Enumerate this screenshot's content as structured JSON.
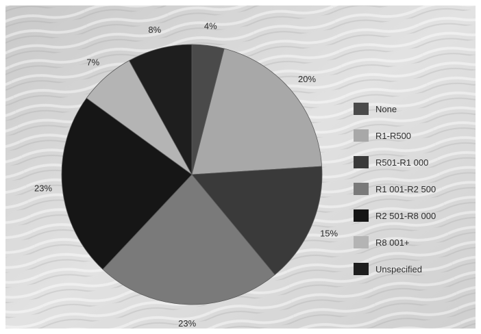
{
  "chart_data": {
    "type": "pie",
    "categories": [
      "None",
      "R1-R500",
      "R501-R1 000",
      "R1 001-R2 500",
      "R2 501-R8 000",
      "R8 001+",
      "Unspecified"
    ],
    "values": [
      4,
      20,
      15,
      23,
      23,
      7,
      8
    ],
    "value_labels": [
      "4%",
      "20%",
      "15%",
      "23%",
      "23%",
      "7%",
      "8%"
    ],
    "legend_labels": [
      "None",
      "R1-R500",
      "R501-R1 000",
      "R1 001-R2 500",
      "R2 501-R8 000",
      "R8 001+",
      "Unspecified"
    ],
    "colors": [
      "#4a4a4a",
      "#a8a8a8",
      "#3a3a3a",
      "#7a7a7a",
      "#161616",
      "#b4b4b4",
      "#1e1e1e"
    ],
    "legend_placement": "right",
    "start_angle_deg": 90,
    "direction": "clockwise"
  }
}
